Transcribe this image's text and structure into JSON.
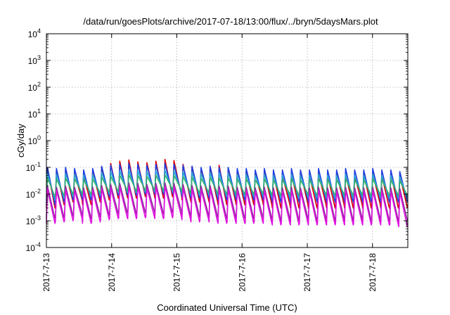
{
  "chart_data": {
    "type": "line",
    "title": "/data/run/goesPlots/archive/2017-07-18/13:00/flux/../bryn/5daysMars.plot",
    "xlabel": "Coordinated Universal Time (UTC)",
    "ylabel": "cGy/day",
    "yscale": "log",
    "ylim": [
      0.0001,
      10000
    ],
    "xlim": [
      "2017-07-13",
      "2017-07-18 13:00"
    ],
    "x_tick_labels": [
      "2017-7-13",
      "2017-7-14",
      "2017-7-15",
      "2017-7-16",
      "2017-7-17",
      "2017-7-18"
    ],
    "y_ticks": [
      {
        "base": "10",
        "exp": "-4"
      },
      {
        "base": "10",
        "exp": "-3"
      },
      {
        "base": "10",
        "exp": "-2"
      },
      {
        "base": "10",
        "exp": "-1"
      },
      {
        "base": "10",
        "exp": "0"
      },
      {
        "base": "10",
        "exp": "1"
      },
      {
        "base": "10",
        "exp": "2"
      },
      {
        "base": "10",
        "exp": "3"
      },
      {
        "base": "10",
        "exp": "4"
      }
    ],
    "grid": true,
    "series": [
      {
        "color": "#dd0000",
        "peaks": [
          0.09,
          0.08,
          0.07,
          0.06,
          0.05,
          0.08,
          0.1,
          0.14,
          0.17,
          0.19,
          0.16,
          0.15,
          0.17,
          0.2,
          0.18,
          0.13,
          0.11,
          0.09,
          0.1,
          0.12,
          0.09,
          0.08,
          0.07,
          0.06,
          0.07,
          0.06,
          0.05,
          0.06,
          0.07,
          0.05,
          0.06,
          0.05,
          0.06,
          0.06,
          0.05,
          0.06,
          0.06,
          0.05,
          0.06,
          0.05
        ],
        "troughs": [
          0.003,
          0.004,
          0.005,
          0.006,
          0.004,
          0.005,
          0.006,
          0.007,
          0.008,
          0.007,
          0.008,
          0.009,
          0.007,
          0.008,
          0.009,
          0.006,
          0.005,
          0.006,
          0.005,
          0.004,
          0.005,
          0.004,
          0.004,
          0.005,
          0.004,
          0.003,
          0.004,
          0.003,
          0.004,
          0.003,
          0.004,
          0.003,
          0.004,
          0.003,
          0.004,
          0.003,
          0.004,
          0.003,
          0.003,
          0.003
        ]
      },
      {
        "color": "#1f3fdf",
        "peaks": [
          0.1,
          0.09,
          0.1,
          0.09,
          0.08,
          0.09,
          0.11,
          0.12,
          0.13,
          0.14,
          0.13,
          0.12,
          0.13,
          0.14,
          0.13,
          0.12,
          0.11,
          0.1,
          0.11,
          0.1,
          0.1,
          0.09,
          0.09,
          0.08,
          0.09,
          0.08,
          0.08,
          0.09,
          0.08,
          0.08,
          0.09,
          0.08,
          0.08,
          0.09,
          0.08,
          0.08,
          0.09,
          0.08,
          0.08,
          0.07
        ],
        "troughs": [
          0.004,
          0.005,
          0.006,
          0.007,
          0.006,
          0.007,
          0.008,
          0.009,
          0.01,
          0.009,
          0.01,
          0.011,
          0.01,
          0.011,
          0.01,
          0.008,
          0.007,
          0.008,
          0.007,
          0.006,
          0.007,
          0.006,
          0.006,
          0.007,
          0.006,
          0.005,
          0.006,
          0.005,
          0.006,
          0.005,
          0.006,
          0.005,
          0.006,
          0.005,
          0.006,
          0.005,
          0.006,
          0.005,
          0.005,
          0.005
        ]
      },
      {
        "color": "#2aa6d6",
        "peaks": [
          0.06,
          0.055,
          0.06,
          0.055,
          0.05,
          0.055,
          0.065,
          0.07,
          0.075,
          0.08,
          0.075,
          0.07,
          0.075,
          0.08,
          0.075,
          0.07,
          0.065,
          0.06,
          0.065,
          0.06,
          0.06,
          0.055,
          0.055,
          0.05,
          0.055,
          0.05,
          0.05,
          0.055,
          0.05,
          0.05,
          0.055,
          0.05,
          0.05,
          0.055,
          0.05,
          0.05,
          0.055,
          0.05,
          0.05,
          0.045
        ],
        "troughs": [
          0.006,
          0.007,
          0.008,
          0.009,
          0.008,
          0.009,
          0.01,
          0.011,
          0.012,
          0.011,
          0.012,
          0.013,
          0.012,
          0.013,
          0.012,
          0.01,
          0.009,
          0.01,
          0.009,
          0.008,
          0.009,
          0.008,
          0.008,
          0.009,
          0.008,
          0.007,
          0.008,
          0.007,
          0.008,
          0.007,
          0.008,
          0.007,
          0.008,
          0.007,
          0.008,
          0.007,
          0.008,
          0.007,
          0.007,
          0.007
        ]
      },
      {
        "color": "#30b070",
        "peaks": [
          0.04,
          0.037,
          0.04,
          0.037,
          0.034,
          0.037,
          0.043,
          0.046,
          0.05,
          0.053,
          0.05,
          0.046,
          0.05,
          0.053,
          0.05,
          0.046,
          0.043,
          0.04,
          0.043,
          0.04,
          0.04,
          0.037,
          0.037,
          0.034,
          0.037,
          0.034,
          0.034,
          0.037,
          0.034,
          0.034,
          0.037,
          0.034,
          0.034,
          0.037,
          0.034,
          0.034,
          0.037,
          0.034,
          0.034,
          0.031
        ],
        "troughs": [
          0.008,
          0.009,
          0.01,
          0.011,
          0.01,
          0.011,
          0.012,
          0.013,
          0.014,
          0.013,
          0.014,
          0.015,
          0.014,
          0.015,
          0.014,
          0.012,
          0.011,
          0.012,
          0.011,
          0.01,
          0.011,
          0.01,
          0.01,
          0.011,
          0.01,
          0.009,
          0.01,
          0.009,
          0.01,
          0.009,
          0.01,
          0.009,
          0.01,
          0.009,
          0.01,
          0.009,
          0.01,
          0.009,
          0.009,
          0.009
        ]
      },
      {
        "color": "#8c2a9c",
        "peaks": [
          0.02,
          0.018,
          0.02,
          0.018,
          0.017,
          0.018,
          0.021,
          0.023,
          0.025,
          0.026,
          0.025,
          0.023,
          0.025,
          0.026,
          0.025,
          0.023,
          0.021,
          0.02,
          0.021,
          0.02,
          0.02,
          0.018,
          0.018,
          0.017,
          0.018,
          0.017,
          0.017,
          0.018,
          0.017,
          0.017,
          0.018,
          0.017,
          0.017,
          0.018,
          0.017,
          0.017,
          0.018,
          0.017,
          0.017,
          0.016
        ],
        "troughs": [
          0.0012,
          0.0013,
          0.0015,
          0.0018,
          0.0012,
          0.0014,
          0.0016,
          0.0018,
          0.002,
          0.0018,
          0.002,
          0.0022,
          0.0018,
          0.002,
          0.0022,
          0.0016,
          0.0014,
          0.0016,
          0.0014,
          0.0012,
          0.0014,
          0.0012,
          0.0012,
          0.0014,
          0.0012,
          0.001,
          0.0012,
          0.001,
          0.0012,
          0.001,
          0.0012,
          0.001,
          0.0012,
          0.001,
          0.0012,
          0.001,
          0.0012,
          0.001,
          0.001,
          0.001
        ]
      },
      {
        "color": "#e010e0",
        "peaks": [
          0.015,
          0.014,
          0.015,
          0.014,
          0.013,
          0.014,
          0.016,
          0.017,
          0.019,
          0.02,
          0.019,
          0.017,
          0.019,
          0.02,
          0.019,
          0.017,
          0.016,
          0.015,
          0.016,
          0.015,
          0.015,
          0.014,
          0.014,
          0.013,
          0.014,
          0.013,
          0.013,
          0.014,
          0.013,
          0.013,
          0.014,
          0.013,
          0.013,
          0.014,
          0.013,
          0.013,
          0.014,
          0.013,
          0.013,
          0.012
        ],
        "troughs": [
          0.0008,
          0.0009,
          0.001,
          0.0012,
          0.0008,
          0.0009,
          0.0011,
          0.0012,
          0.0013,
          0.0012,
          0.0013,
          0.0014,
          0.0012,
          0.0013,
          0.0014,
          0.0011,
          0.0009,
          0.0011,
          0.0009,
          0.0008,
          0.0009,
          0.0008,
          0.0008,
          0.0009,
          0.0008,
          0.0007,
          0.0008,
          0.0007,
          0.0008,
          0.0007,
          0.0008,
          0.0007,
          0.0008,
          0.0007,
          0.0008,
          0.0007,
          0.0008,
          0.0007,
          0.0007,
          0.0006
        ]
      }
    ]
  }
}
